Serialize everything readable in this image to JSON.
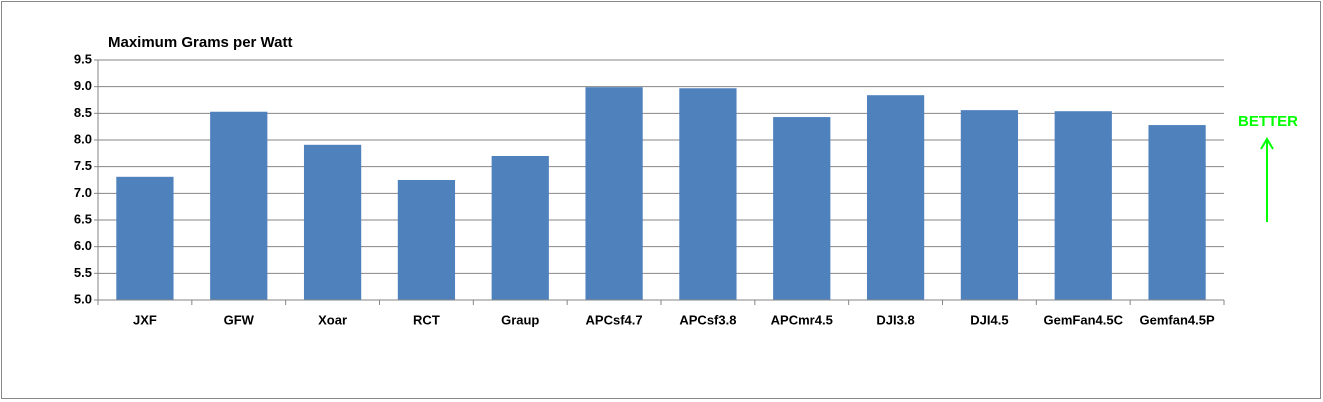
{
  "chart_data": {
    "type": "bar",
    "title": "Maximum Grams per Watt",
    "categories": [
      "JXF",
      "GFW",
      "Xoar",
      "RCT",
      "Graup",
      "APCsf4.7",
      "APCsf3.8",
      "APCmr4.5",
      "DJI3.8",
      "DJI4.5",
      "GemFan4.5C",
      "Gemfan4.5P"
    ],
    "values": [
      7.31,
      8.53,
      7.91,
      7.25,
      7.7,
      8.99,
      8.97,
      8.43,
      8.84,
      8.56,
      8.54,
      8.28
    ],
    "color": "#4f81bd",
    "ylim": [
      5,
      9.5
    ],
    "yticks": [
      {
        "value": 5,
        "label": "5.0"
      },
      5.5,
      {
        "value": 6,
        "label": "6.0"
      },
      6.5,
      {
        "value": 7,
        "label": "7.0"
      },
      7.5,
      {
        "value": 8,
        "label": "8.0"
      },
      8.5,
      {
        "value": 9,
        "label": "9.0"
      },
      9.5
    ],
    "grid": true,
    "annotation": "BETTER",
    "annotation_color": "#00ff00"
  }
}
